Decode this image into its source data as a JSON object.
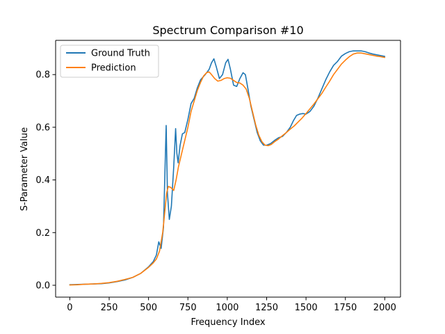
{
  "chart_data": {
    "type": "line",
    "title": "Spectrum Comparison #10",
    "xlabel": "Frequency Index",
    "ylabel": "S-Parameter Value",
    "xlim": [
      -90,
      2100
    ],
    "ylim": [
      -0.045,
      0.93
    ],
    "x_ticks": [
      0,
      250,
      500,
      750,
      1000,
      1250,
      1500,
      1750,
      2000
    ],
    "y_ticks": [
      0.0,
      0.2,
      0.4,
      0.6,
      0.8
    ],
    "x_tick_labels": [
      "0",
      "250",
      "500",
      "750",
      "1000",
      "1250",
      "1500",
      "1750",
      "2000"
    ],
    "y_tick_labels": [
      "0.0",
      "0.2",
      "0.4",
      "0.6",
      "0.8"
    ],
    "grid": false,
    "legend_position": "top-left",
    "series": [
      {
        "name": "Ground Truth",
        "color": "#1f77b4",
        "points": [
          [
            0,
            0.002
          ],
          [
            50,
            0.003
          ],
          [
            100,
            0.004
          ],
          [
            150,
            0.005
          ],
          [
            200,
            0.006
          ],
          [
            250,
            0.009
          ],
          [
            300,
            0.014
          ],
          [
            350,
            0.02
          ],
          [
            400,
            0.03
          ],
          [
            450,
            0.045
          ],
          [
            500,
            0.07
          ],
          [
            530,
            0.09
          ],
          [
            550,
            0.115
          ],
          [
            565,
            0.165
          ],
          [
            580,
            0.14
          ],
          [
            595,
            0.22
          ],
          [
            605,
            0.45
          ],
          [
            612,
            0.607
          ],
          [
            620,
            0.35
          ],
          [
            632,
            0.25
          ],
          [
            645,
            0.3
          ],
          [
            660,
            0.45
          ],
          [
            672,
            0.595
          ],
          [
            680,
            0.5
          ],
          [
            688,
            0.465
          ],
          [
            700,
            0.53
          ],
          [
            715,
            0.575
          ],
          [
            730,
            0.58
          ],
          [
            750,
            0.63
          ],
          [
            770,
            0.69
          ],
          [
            790,
            0.71
          ],
          [
            810,
            0.75
          ],
          [
            830,
            0.78
          ],
          [
            860,
            0.8
          ],
          [
            885,
            0.82
          ],
          [
            900,
            0.845
          ],
          [
            915,
            0.86
          ],
          [
            930,
            0.83
          ],
          [
            950,
            0.785
          ],
          [
            970,
            0.8
          ],
          [
            990,
            0.845
          ],
          [
            1005,
            0.858
          ],
          [
            1020,
            0.82
          ],
          [
            1040,
            0.76
          ],
          [
            1060,
            0.755
          ],
          [
            1080,
            0.785
          ],
          [
            1100,
            0.807
          ],
          [
            1115,
            0.8
          ],
          [
            1130,
            0.75
          ],
          [
            1150,
            0.68
          ],
          [
            1170,
            0.63
          ],
          [
            1190,
            0.58
          ],
          [
            1210,
            0.548
          ],
          [
            1230,
            0.532
          ],
          [
            1250,
            0.532
          ],
          [
            1275,
            0.538
          ],
          [
            1300,
            0.55
          ],
          [
            1325,
            0.56
          ],
          [
            1350,
            0.565
          ],
          [
            1375,
            0.58
          ],
          [
            1400,
            0.6
          ],
          [
            1420,
            0.625
          ],
          [
            1440,
            0.645
          ],
          [
            1460,
            0.65
          ],
          [
            1480,
            0.652
          ],
          [
            1500,
            0.65
          ],
          [
            1525,
            0.66
          ],
          [
            1550,
            0.68
          ],
          [
            1575,
            0.71
          ],
          [
            1600,
            0.745
          ],
          [
            1625,
            0.78
          ],
          [
            1650,
            0.81
          ],
          [
            1675,
            0.835
          ],
          [
            1700,
            0.85
          ],
          [
            1725,
            0.87
          ],
          [
            1750,
            0.88
          ],
          [
            1775,
            0.887
          ],
          [
            1800,
            0.89
          ],
          [
            1825,
            0.89
          ],
          [
            1850,
            0.89
          ],
          [
            1875,
            0.887
          ],
          [
            1900,
            0.882
          ],
          [
            1925,
            0.878
          ],
          [
            1950,
            0.875
          ],
          [
            1975,
            0.872
          ],
          [
            2000,
            0.869
          ]
        ]
      },
      {
        "name": "Prediction",
        "color": "#ff7f0e",
        "points": [
          [
            0,
            0.001
          ],
          [
            50,
            0.002
          ],
          [
            100,
            0.004
          ],
          [
            150,
            0.005
          ],
          [
            200,
            0.007
          ],
          [
            250,
            0.01
          ],
          [
            300,
            0.015
          ],
          [
            350,
            0.022
          ],
          [
            400,
            0.03
          ],
          [
            450,
            0.045
          ],
          [
            500,
            0.068
          ],
          [
            530,
            0.085
          ],
          [
            550,
            0.1
          ],
          [
            570,
            0.13
          ],
          [
            590,
            0.2
          ],
          [
            605,
            0.29
          ],
          [
            615,
            0.35
          ],
          [
            625,
            0.375
          ],
          [
            640,
            0.372
          ],
          [
            660,
            0.36
          ],
          [
            675,
            0.4
          ],
          [
            690,
            0.45
          ],
          [
            710,
            0.5
          ],
          [
            730,
            0.55
          ],
          [
            750,
            0.6
          ],
          [
            770,
            0.66
          ],
          [
            790,
            0.7
          ],
          [
            810,
            0.74
          ],
          [
            830,
            0.77
          ],
          [
            850,
            0.795
          ],
          [
            870,
            0.808
          ],
          [
            885,
            0.81
          ],
          [
            900,
            0.8
          ],
          [
            920,
            0.785
          ],
          [
            940,
            0.775
          ],
          [
            960,
            0.778
          ],
          [
            980,
            0.785
          ],
          [
            1000,
            0.788
          ],
          [
            1020,
            0.786
          ],
          [
            1040,
            0.778
          ],
          [
            1060,
            0.77
          ],
          [
            1080,
            0.768
          ],
          [
            1100,
            0.76
          ],
          [
            1120,
            0.745
          ],
          [
            1140,
            0.71
          ],
          [
            1160,
            0.66
          ],
          [
            1180,
            0.61
          ],
          [
            1200,
            0.57
          ],
          [
            1220,
            0.545
          ],
          [
            1240,
            0.532
          ],
          [
            1260,
            0.53
          ],
          [
            1280,
            0.535
          ],
          [
            1300,
            0.545
          ],
          [
            1325,
            0.555
          ],
          [
            1350,
            0.568
          ],
          [
            1375,
            0.58
          ],
          [
            1400,
            0.593
          ],
          [
            1425,
            0.605
          ],
          [
            1450,
            0.62
          ],
          [
            1475,
            0.635
          ],
          [
            1500,
            0.652
          ],
          [
            1525,
            0.67
          ],
          [
            1550,
            0.688
          ],
          [
            1575,
            0.708
          ],
          [
            1600,
            0.728
          ],
          [
            1625,
            0.752
          ],
          [
            1650,
            0.775
          ],
          [
            1675,
            0.8
          ],
          [
            1700,
            0.82
          ],
          [
            1725,
            0.84
          ],
          [
            1750,
            0.855
          ],
          [
            1775,
            0.868
          ],
          [
            1800,
            0.878
          ],
          [
            1825,
            0.882
          ],
          [
            1850,
            0.882
          ],
          [
            1875,
            0.879
          ],
          [
            1900,
            0.876
          ],
          [
            1925,
            0.873
          ],
          [
            1950,
            0.87
          ],
          [
            1975,
            0.868
          ],
          [
            2000,
            0.865
          ]
        ]
      }
    ]
  }
}
